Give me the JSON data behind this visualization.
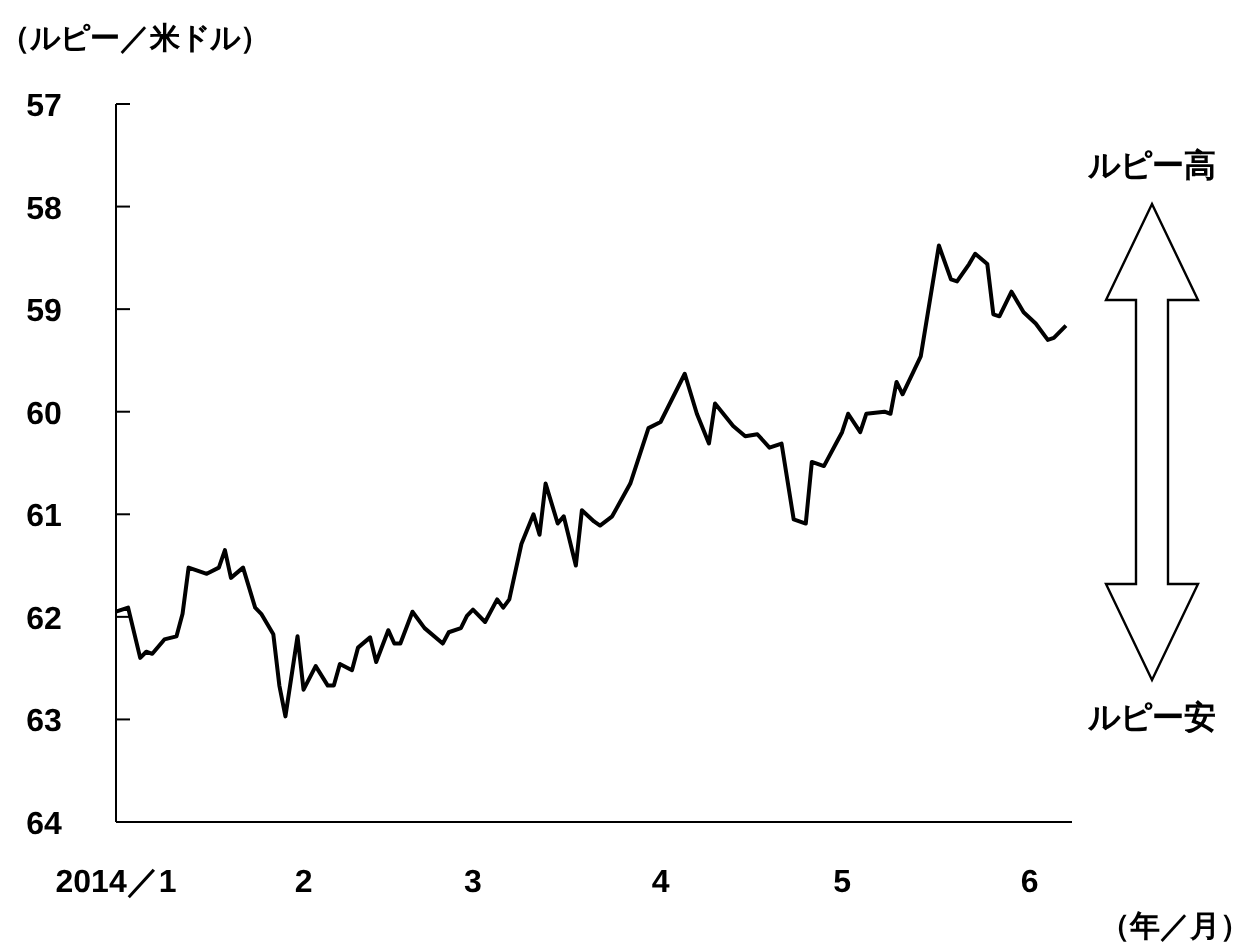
{
  "chart_data": {
    "type": "line",
    "ylabel": "（ルピー／米ドル）",
    "xlabel": "（年／月）",
    "annotations": [
      "ルピー高",
      "ルピー安"
    ],
    "x": [
      "2014-01-01",
      "2014-01-03",
      "2014-01-05",
      "2014-01-06",
      "2014-01-07",
      "2014-01-09",
      "2014-01-11",
      "2014-01-12",
      "2014-01-13",
      "2014-01-16",
      "2014-01-18",
      "2014-01-19",
      "2014-01-20",
      "2014-01-22",
      "2014-01-24",
      "2014-01-25",
      "2014-01-27",
      "2014-01-28",
      "2014-01-29",
      "2014-01-31",
      "2014-02-01",
      "2014-02-03",
      "2014-02-05",
      "2014-02-06",
      "2014-02-07",
      "2014-02-09",
      "2014-02-10",
      "2014-02-12",
      "2014-02-13",
      "2014-02-15",
      "2014-02-16",
      "2014-02-17",
      "2014-02-19",
      "2014-02-21",
      "2014-02-24",
      "2014-02-25",
      "2014-02-27",
      "2014-02-28",
      "2014-03-01",
      "2014-03-03",
      "2014-03-05",
      "2014-03-06",
      "2014-03-07",
      "2014-03-09",
      "2014-03-11",
      "2014-03-12",
      "2014-03-13",
      "2014-03-15",
      "2014-03-16",
      "2014-03-18",
      "2014-03-19",
      "2014-03-21",
      "2014-03-22",
      "2014-03-24",
      "2014-03-27",
      "2014-03-30",
      "2014-04-01",
      "2014-04-05",
      "2014-04-07",
      "2014-04-09",
      "2014-04-10",
      "2014-04-13",
      "2014-04-15",
      "2014-04-17",
      "2014-04-19",
      "2014-04-21",
      "2014-04-23",
      "2014-04-25",
      "2014-04-26",
      "2014-04-28",
      "2014-04-30",
      "2014-05-01",
      "2014-05-02",
      "2014-05-04",
      "2014-05-05",
      "2014-05-08",
      "2014-05-09",
      "2014-05-10",
      "2014-05-11",
      "2014-05-14",
      "2014-05-17",
      "2014-05-19",
      "2014-05-20",
      "2014-05-22",
      "2014-05-23",
      "2014-05-25",
      "2014-05-26",
      "2014-05-27",
      "2014-05-29",
      "2014-05-31",
      "2014-06-02",
      "2014-06-04",
      "2014-06-05",
      "2014-06-07"
    ],
    "series": [
      {
        "color": "#000000",
        "values": [
          61.95,
          61.91,
          62.4,
          62.34,
          62.36,
          62.22,
          62.19,
          61.97,
          61.52,
          61.58,
          61.52,
          61.35,
          61.62,
          61.52,
          61.91,
          61.97,
          62.17,
          62.67,
          62.97,
          62.19,
          62.71,
          62.48,
          62.67,
          62.67,
          62.46,
          62.52,
          62.3,
          62.2,
          62.44,
          62.13,
          62.26,
          62.26,
          61.95,
          62.11,
          62.26,
          62.15,
          62.11,
          61.99,
          61.93,
          62.05,
          61.83,
          61.91,
          61.83,
          61.29,
          61.0,
          61.2,
          60.7,
          61.09,
          61.02,
          61.5,
          60.96,
          61.07,
          61.11,
          61.02,
          60.7,
          60.16,
          60.1,
          59.63,
          60.02,
          60.31,
          59.92,
          60.14,
          60.24,
          60.22,
          60.35,
          60.31,
          61.05,
          61.09,
          60.49,
          60.53,
          60.31,
          60.2,
          60.02,
          60.2,
          60.02,
          60.0,
          60.02,
          59.71,
          59.83,
          59.46,
          58.38,
          58.71,
          58.73,
          58.56,
          58.46,
          58.56,
          59.05,
          59.07,
          58.83,
          59.03,
          59.14,
          59.3,
          59.28,
          59.16
        ]
      }
    ],
    "xlim": [
      "2014-01-01",
      "2014-06-08"
    ],
    "xticks": [
      {
        "value": "2014-01-01",
        "label": "2014／1"
      },
      {
        "value": "2014-02-01",
        "label": "2"
      },
      {
        "value": "2014-03-01",
        "label": "3"
      },
      {
        "value": "2014-04-01",
        "label": "4"
      },
      {
        "value": "2014-05-01",
        "label": "5"
      },
      {
        "value": "2014-06-01",
        "label": "6"
      }
    ],
    "ylim": [
      64,
      57
    ],
    "yticks": [
      57,
      58,
      59,
      60,
      61,
      62,
      63,
      64
    ],
    "line_style": "solid"
  }
}
